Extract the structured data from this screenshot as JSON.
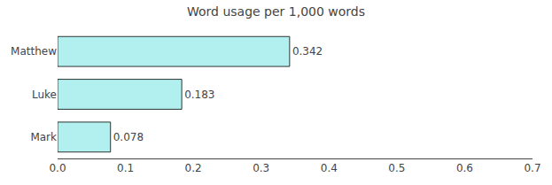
{
  "chart_data": {
    "type": "bar",
    "orientation": "horizontal",
    "title": "Word usage per 1,000 words",
    "categories": [
      "Mark",
      "Luke",
      "Matthew"
    ],
    "values": [
      0.078,
      0.183,
      0.342
    ],
    "color": "#b2f0f0",
    "xlim": [
      0.0,
      0.7
    ],
    "xticks": [
      {
        "value": 0.0,
        "label": "0.0"
      },
      0.1,
      0.2,
      0.3,
      0.4,
      0.5,
      0.6,
      0.7
    ],
    "data_labels": true,
    "grid": false
  }
}
